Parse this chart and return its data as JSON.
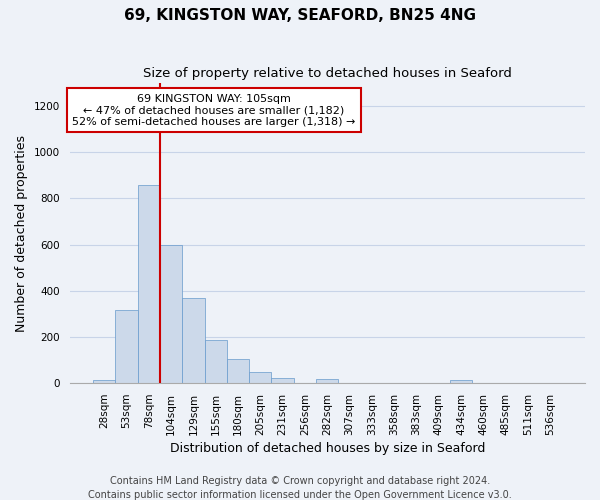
{
  "title": "69, KINGSTON WAY, SEAFORD, BN25 4NG",
  "subtitle": "Size of property relative to detached houses in Seaford",
  "xlabel": "Distribution of detached houses by size in Seaford",
  "ylabel": "Number of detached properties",
  "categories": [
    "28sqm",
    "53sqm",
    "78sqm",
    "104sqm",
    "129sqm",
    "155sqm",
    "180sqm",
    "205sqm",
    "231sqm",
    "256sqm",
    "282sqm",
    "307sqm",
    "333sqm",
    "358sqm",
    "383sqm",
    "409sqm",
    "434sqm",
    "460sqm",
    "485sqm",
    "511sqm",
    "536sqm"
  ],
  "values": [
    12,
    315,
    860,
    600,
    370,
    185,
    105,
    48,
    22,
    0,
    20,
    0,
    0,
    0,
    0,
    0,
    12,
    0,
    0,
    0,
    0
  ],
  "bar_color": "#ccd9ea",
  "bar_edge_color": "#6699cc",
  "grid_color": "#c8d4e8",
  "background_color": "#eef2f8",
  "annotation_box_color": "#ffffff",
  "annotation_border_color": "#cc0000",
  "line_color": "#cc0000",
  "property_label": "69 KINGSTON WAY: 105sqm",
  "annotation_line1": "← 47% of detached houses are smaller (1,182)",
  "annotation_line2": "52% of semi-detached houses are larger (1,318) →",
  "vline_bar_index": 3,
  "ylim": [
    0,
    1300
  ],
  "yticks": [
    0,
    200,
    400,
    600,
    800,
    1000,
    1200
  ],
  "footer_line1": "Contains HM Land Registry data © Crown copyright and database right 2024.",
  "footer_line2": "Contains public sector information licensed under the Open Government Licence v3.0.",
  "title_fontsize": 11,
  "subtitle_fontsize": 9.5,
  "axis_label_fontsize": 9,
  "tick_fontsize": 7.5,
  "annotation_fontsize": 8,
  "footer_fontsize": 7
}
